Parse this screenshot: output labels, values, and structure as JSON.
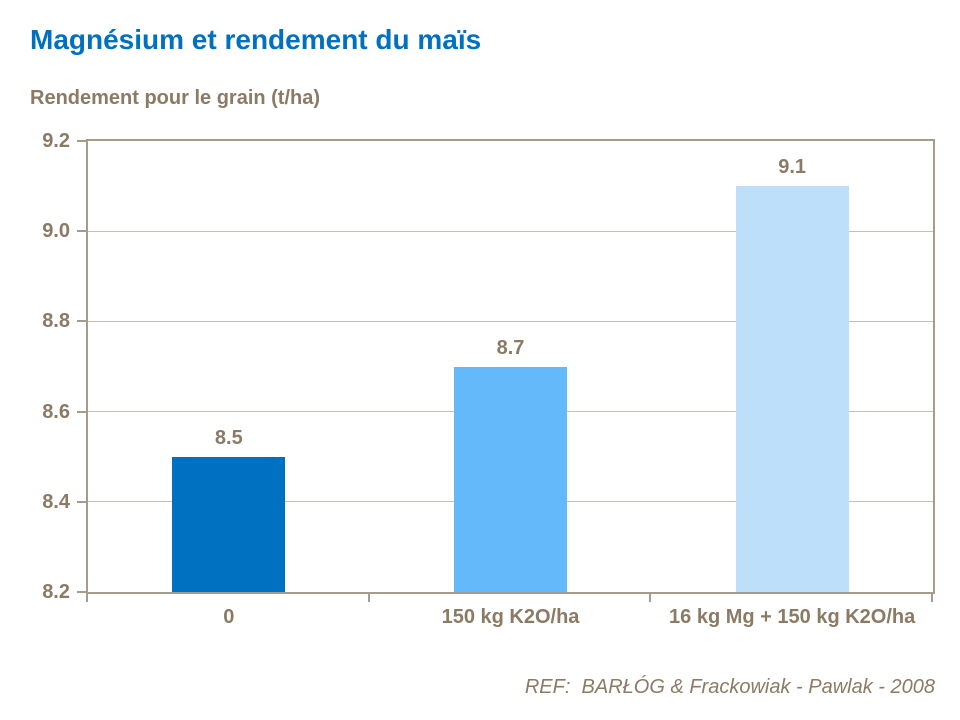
{
  "header": {
    "title": "Magnésium et rendement du maïs",
    "subtitle": "Rendement pour le grain (t/ha)"
  },
  "footer": {
    "reference": "REF:  BARŁÓG & Frackowiak - Pawlak - 2008"
  },
  "colors": {
    "title": "#0070C0",
    "text_brown": "#8B7A64",
    "grid": "#C8C0B2",
    "axis_border": "#A59C8D",
    "background": "#FFFFFF"
  },
  "chart_data": {
    "type": "bar",
    "title": "Magnésium et rendement du maïs",
    "ylabel": "Rendement pour le grain (t/ha)",
    "categories": [
      "0",
      "150 kg K2O/ha",
      "16 kg Mg + 150 kg K2O/ha"
    ],
    "values": [
      8.5,
      8.7,
      9.1
    ],
    "value_labels": [
      "8.5",
      "8.7",
      "9.1"
    ],
    "bar_colors": [
      "#0071C1",
      "#63B9F9",
      "#BDDFFA"
    ],
    "ylim": [
      8.2,
      9.2
    ],
    "yticks": [
      9.2,
      9.0,
      8.8,
      8.6,
      8.4,
      8.2
    ],
    "ytick_labels": [
      "9.2",
      "9.0",
      "8.8",
      "8.6",
      "8.4",
      "8.2"
    ],
    "grid": true,
    "legend_position": "none",
    "annotation": "REF:  BARŁÓG & Frackowiak - Pawlak - 2008"
  }
}
